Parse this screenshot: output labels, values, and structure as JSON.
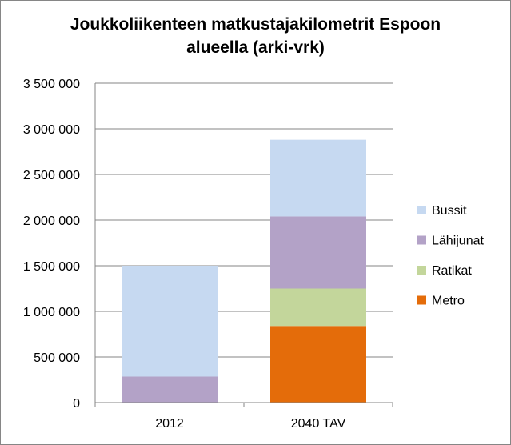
{
  "chart_data": {
    "type": "bar",
    "stacked": true,
    "title_lines": [
      "Joukkoliikenteen matkustajakilometrit Espoon",
      "alueella (arki-vrk)"
    ],
    "categories": [
      "2012",
      "2040 TAV"
    ],
    "series": [
      {
        "name": "Metro",
        "color": "#E46C0A",
        "values": [
          0,
          840000
        ]
      },
      {
        "name": "Ratikat",
        "color": "#C3D69B",
        "values": [
          0,
          410000
        ]
      },
      {
        "name": "Lähijunat",
        "color": "#B3A2C7",
        "values": [
          285000,
          790000
        ]
      },
      {
        "name": "Bussit",
        "color": "#C6D9F1",
        "values": [
          1215000,
          840000
        ]
      }
    ],
    "y_ticks": [
      "0",
      "500 000",
      "1 000 000",
      "1 500 000",
      "2 000 000",
      "2 500 000",
      "3 000 000",
      "3 500 000"
    ],
    "ylim": [
      0,
      3500000
    ],
    "grid": true,
    "legend_position": "right",
    "legend_order": [
      "Bussit",
      "Lähijunat",
      "Ratikat",
      "Metro"
    ]
  }
}
